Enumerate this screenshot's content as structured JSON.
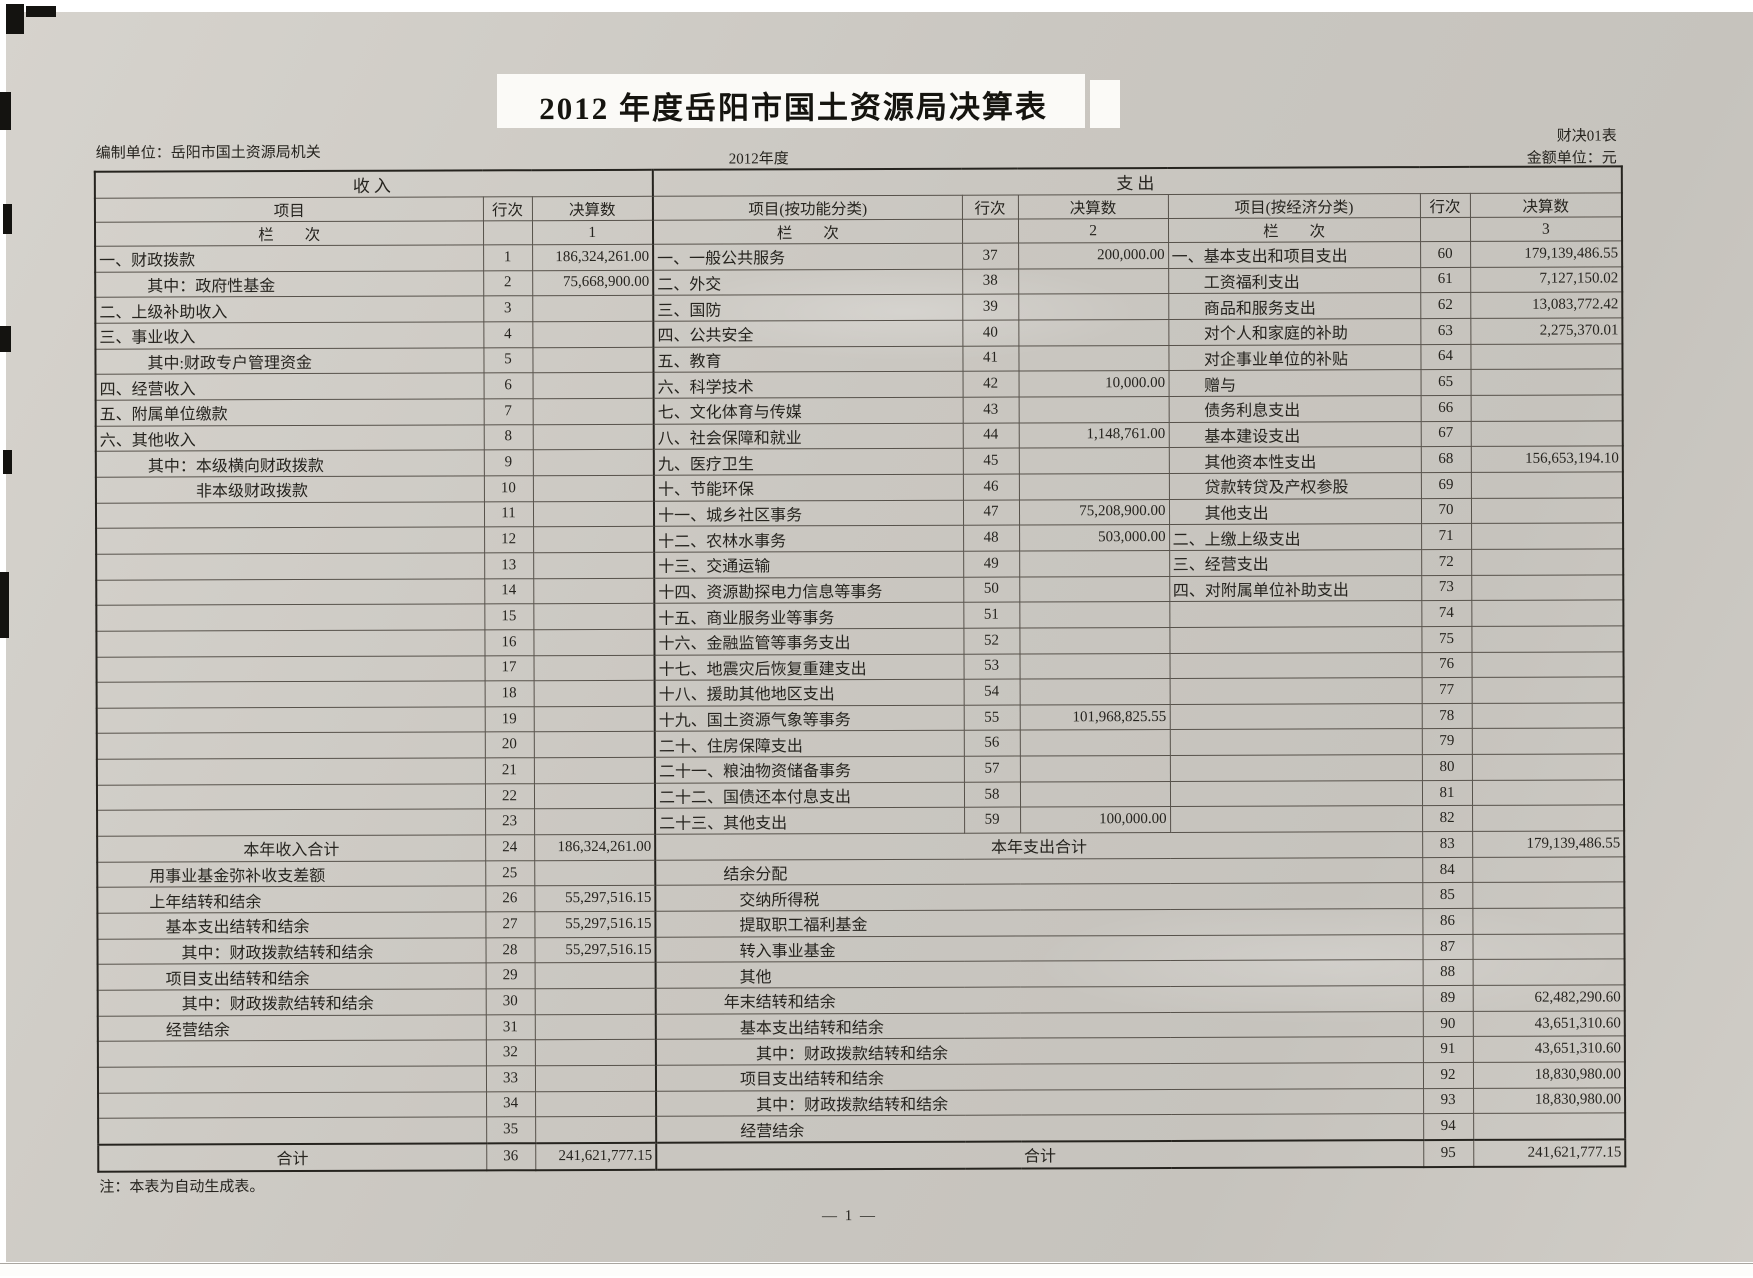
{
  "colors": {
    "paper": "#cbc8c2",
    "ink": "#26241f",
    "grid_line": "#57524b"
  },
  "page": {
    "title": "2012 年度岳阳市国土资源局决算表",
    "prepared_by": "编制单位：岳阳市国土资源局机关",
    "period": "2012年度",
    "form_no": "财决01表",
    "unit_label": "金额单位：元",
    "footnote": "注：本表为自动生成表。",
    "page_number": "— 1 —"
  },
  "table": {
    "sections": {
      "income": "收入",
      "expenditure": "支出"
    },
    "column_headers": {
      "item": "项目",
      "row_no": "行次",
      "amount": "决算数",
      "item_functional": "项目(按功能分类)",
      "item_economic": "项目(按经济分类)",
      "col_index_label": "栏　　次",
      "col1": "1",
      "col2": "2",
      "col3": "3"
    },
    "rows": [
      {
        "l": "一、财政拨款",
        "ln": "1",
        "lv": "186,324,261.00",
        "m": "一、一般公共服务",
        "mn": "37",
        "mv": "200,000.00",
        "r": "一、基本支出和项目支出",
        "rn": "60",
        "rv": "179,139,486.55"
      },
      {
        "l": "　　　其中：政府性基金",
        "ln": "2",
        "lv": "75,668,900.00",
        "m": "二、外交",
        "mn": "38",
        "mv": "",
        "r": "　　工资福利支出",
        "rn": "61",
        "rv": "7,127,150.02"
      },
      {
        "l": "二、上级补助收入",
        "ln": "3",
        "lv": "",
        "m": "三、国防",
        "mn": "39",
        "mv": "",
        "r": "　　商品和服务支出",
        "rn": "62",
        "rv": "13,083,772.42"
      },
      {
        "l": "三、事业收入",
        "ln": "4",
        "lv": "",
        "m": "四、公共安全",
        "mn": "40",
        "mv": "",
        "r": "　　对个人和家庭的补助",
        "rn": "63",
        "rv": "2,275,370.01"
      },
      {
        "l": "　　　其中:财政专户管理资金",
        "ln": "5",
        "lv": "",
        "m": "五、教育",
        "mn": "41",
        "mv": "",
        "r": "　　对企事业单位的补贴",
        "rn": "64",
        "rv": ""
      },
      {
        "l": "四、经营收入",
        "ln": "6",
        "lv": "",
        "m": "六、科学技术",
        "mn": "42",
        "mv": "10,000.00",
        "r": "　　赠与",
        "rn": "65",
        "rv": ""
      },
      {
        "l": "五、附属单位缴款",
        "ln": "7",
        "lv": "",
        "m": "七、文化体育与传媒",
        "mn": "43",
        "mv": "",
        "r": "　　债务利息支出",
        "rn": "66",
        "rv": ""
      },
      {
        "l": "六、其他收入",
        "ln": "8",
        "lv": "",
        "m": "八、社会保障和就业",
        "mn": "44",
        "mv": "1,148,761.00",
        "r": "　　基本建设支出",
        "rn": "67",
        "rv": ""
      },
      {
        "l": "　　　其中：本级横向财政拨款",
        "ln": "9",
        "lv": "",
        "m": "九、医疗卫生",
        "mn": "45",
        "mv": "",
        "r": "　　其他资本性支出",
        "rn": "68",
        "rv": "156,653,194.10"
      },
      {
        "l": "　　　　　　非本级财政拨款",
        "ln": "10",
        "lv": "",
        "m": "十、节能环保",
        "mn": "46",
        "mv": "",
        "r": "　　贷款转贷及产权参股",
        "rn": "69",
        "rv": ""
      },
      {
        "l": "",
        "ln": "11",
        "lv": "",
        "m": "十一、城乡社区事务",
        "mn": "47",
        "mv": "75,208,900.00",
        "r": "　　其他支出",
        "rn": "70",
        "rv": ""
      },
      {
        "l": "",
        "ln": "12",
        "lv": "",
        "m": "十二、农林水事务",
        "mn": "48",
        "mv": "503,000.00",
        "r": "二、上缴上级支出",
        "rn": "71",
        "rv": ""
      },
      {
        "l": "",
        "ln": "13",
        "lv": "",
        "m": "十三、交通运输",
        "mn": "49",
        "mv": "",
        "r": "三、经营支出",
        "rn": "72",
        "rv": ""
      },
      {
        "l": "",
        "ln": "14",
        "lv": "",
        "m": "十四、资源勘探电力信息等事务",
        "mn": "50",
        "mv": "",
        "r": "四、对附属单位补助支出",
        "rn": "73",
        "rv": ""
      },
      {
        "l": "",
        "ln": "15",
        "lv": "",
        "m": "十五、商业服务业等事务",
        "mn": "51",
        "mv": "",
        "r": "",
        "rn": "74",
        "rv": ""
      },
      {
        "l": "",
        "ln": "16",
        "lv": "",
        "m": "十六、金融监管等事务支出",
        "mn": "52",
        "mv": "",
        "r": "",
        "rn": "75",
        "rv": ""
      },
      {
        "l": "",
        "ln": "17",
        "lv": "",
        "m": "十七、地震灾后恢复重建支出",
        "mn": "53",
        "mv": "",
        "r": "",
        "rn": "76",
        "rv": ""
      },
      {
        "l": "",
        "ln": "18",
        "lv": "",
        "m": "十八、援助其他地区支出",
        "mn": "54",
        "mv": "",
        "r": "",
        "rn": "77",
        "rv": ""
      },
      {
        "l": "",
        "ln": "19",
        "lv": "",
        "m": "十九、国土资源气象等事务",
        "mn": "55",
        "mv": "101,968,825.55",
        "r": "",
        "rn": "78",
        "rv": ""
      },
      {
        "l": "",
        "ln": "20",
        "lv": "",
        "m": "二十、住房保障支出",
        "mn": "56",
        "mv": "",
        "r": "",
        "rn": "79",
        "rv": ""
      },
      {
        "l": "",
        "ln": "21",
        "lv": "",
        "m": "二十一、粮油物资储备事务",
        "mn": "57",
        "mv": "",
        "r": "",
        "rn": "80",
        "rv": ""
      },
      {
        "l": "",
        "ln": "22",
        "lv": "",
        "m": "二十二、国债还本付息支出",
        "mn": "58",
        "mv": "",
        "r": "",
        "rn": "81",
        "rv": ""
      },
      {
        "l": "",
        "ln": "23",
        "lv": "",
        "m": "二十三、其他支出",
        "mn": "59",
        "mv": "100,000.00",
        "r": "",
        "rn": "82",
        "rv": ""
      },
      {
        "span": 1,
        "lc": 1,
        "mc": 1,
        "l": "本年收入合计",
        "ln": "24",
        "lv": "186,324,261.00",
        "m": "本年支出合计",
        "rn": "83",
        "rv": "179,139,486.55"
      },
      {
        "span": 1,
        "l": "　　　用事业基金弥补收支差额",
        "ln": "25",
        "lv": "",
        "m": "　　　　结余分配",
        "rn": "84",
        "rv": ""
      },
      {
        "span": 1,
        "l": "　　　上年结转和结余",
        "ln": "26",
        "lv": "55,297,516.15",
        "m": "　　　　　交纳所得税",
        "rn": "85",
        "rv": ""
      },
      {
        "span": 1,
        "l": "　　　　基本支出结转和结余",
        "ln": "27",
        "lv": "55,297,516.15",
        "m": "　　　　　提取职工福利基金",
        "rn": "86",
        "rv": ""
      },
      {
        "span": 1,
        "l": "　　　　　其中：财政拨款结转和结余",
        "ln": "28",
        "lv": "55,297,516.15",
        "m": "　　　　　转入事业基金",
        "rn": "87",
        "rv": ""
      },
      {
        "span": 1,
        "l": "　　　　项目支出结转和结余",
        "ln": "29",
        "lv": "",
        "m": "　　　　　其他",
        "rn": "88",
        "rv": ""
      },
      {
        "span": 1,
        "l": "　　　　　其中：财政拨款结转和结余",
        "ln": "30",
        "lv": "",
        "m": "　　　　年末结转和结余",
        "rn": "89",
        "rv": "62,482,290.60"
      },
      {
        "span": 1,
        "l": "　　　　经营结余",
        "ln": "31",
        "lv": "",
        "m": "　　　　　基本支出结转和结余",
        "rn": "90",
        "rv": "43,651,310.60"
      },
      {
        "span": 1,
        "l": "",
        "ln": "32",
        "lv": "",
        "m": "　　　　　　其中：财政拨款结转和结余",
        "rn": "91",
        "rv": "43,651,310.60"
      },
      {
        "span": 1,
        "l": "",
        "ln": "33",
        "lv": "",
        "m": "　　　　　项目支出结转和结余",
        "rn": "92",
        "rv": "18,830,980.00"
      },
      {
        "span": 1,
        "l": "",
        "ln": "34",
        "lv": "",
        "m": "　　　　　　其中：财政拨款结转和结余",
        "rn": "93",
        "rv": "18,830,980.00"
      },
      {
        "span": 1,
        "l": "",
        "ln": "35",
        "lv": "",
        "m": "　　　　　经营结余",
        "rn": "94",
        "rv": ""
      },
      {
        "span": 1,
        "lc": 1,
        "mc": 1,
        "thick": 1,
        "l": "合计",
        "ln": "36",
        "lv": "241,621,777.15",
        "m": "合计",
        "rn": "95",
        "rv": "241,621,777.15"
      }
    ]
  }
}
